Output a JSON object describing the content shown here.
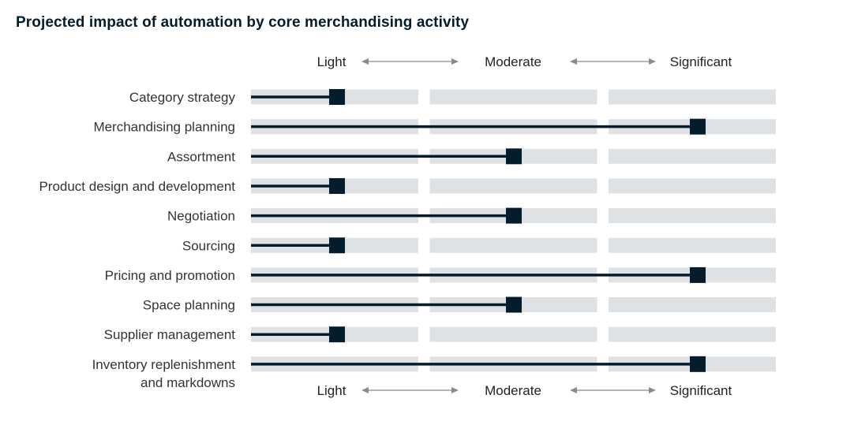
{
  "chart_data": {
    "type": "bar",
    "title": "Projected impact of automation by core merchandising activity",
    "scale_levels": [
      "Light",
      "Moderate",
      "Significant"
    ],
    "categories": [
      "Category strategy",
      "Merchandising planning",
      "Assortment",
      "Product design and development",
      "Negotiation",
      "Sourcing",
      "Pricing and promotion",
      "Space planning",
      "Supplier management",
      "Inventory replenishment and markdowns"
    ],
    "category_lines": [
      [
        "Category strategy"
      ],
      [
        "Merchandising planning"
      ],
      [
        "Assortment"
      ],
      [
        "Product design and development"
      ],
      [
        "Negotiation"
      ],
      [
        "Sourcing"
      ],
      [
        "Pricing and promotion"
      ],
      [
        "Space planning"
      ],
      [
        "Supplier management"
      ],
      [
        "Inventory replenishment",
        "and markdowns"
      ]
    ],
    "values": [
      "Light",
      "Significant",
      "Moderate",
      "Light",
      "Moderate",
      "Light",
      "Significant",
      "Moderate",
      "Light",
      "Significant"
    ],
    "series": [
      {
        "values": [
          1,
          3,
          2,
          1,
          2,
          1,
          3,
          2,
          1,
          3
        ]
      }
    ],
    "ylim": [
      0,
      3
    ],
    "colors": {
      "track": "#dfe2e5",
      "line": "#051c2c",
      "marker": "#051c2c",
      "arrow": "#8a8a8a"
    }
  }
}
